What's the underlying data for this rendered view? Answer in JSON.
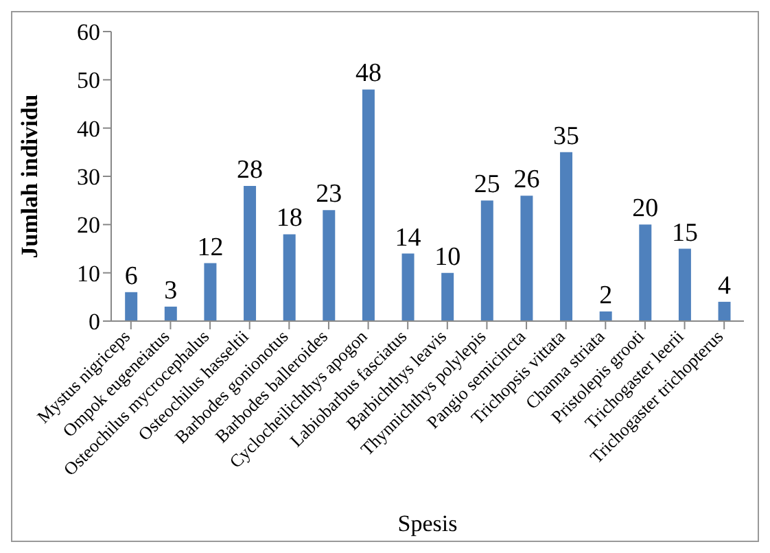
{
  "chart_data": {
    "type": "bar",
    "xlabel": "Spesis",
    "ylabel": "Jumlah individu",
    "categories": [
      "Mystus nigriceps",
      "Ompok eugeneiatus",
      "Osteochilus mycrocephalus",
      "Osteochilus hasseltii",
      "Barbodes gonionotus",
      "Barbodes balleroides",
      "Cyclocheilichthys apogon",
      "Labiobarbus fasciatus",
      "Barbichthys leavis",
      "Thynnichthys polylepis",
      "Pangio semicincta",
      "Trichopsis vittata",
      "Channa striata",
      "Pristolepis grooti",
      "Trichogaster leerii",
      "Trichogaster trichopterus"
    ],
    "values": [
      6,
      3,
      12,
      28,
      18,
      23,
      48,
      14,
      10,
      25,
      26,
      35,
      2,
      20,
      15,
      4
    ],
    "color": "#4f81bd",
    "ylim": [
      0,
      60
    ],
    "yticks": [
      0,
      10,
      20,
      30,
      40,
      50,
      60
    ],
    "data_labels": true,
    "grid": false,
    "legend": false
  }
}
